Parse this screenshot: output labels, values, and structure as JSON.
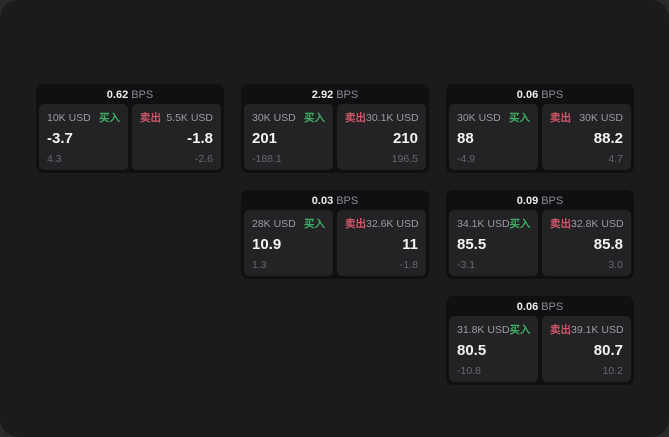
{
  "colors": {
    "buy": "#3fae63",
    "sell": "#cf5767",
    "window_bg": "#1b1b1d",
    "card_bg": "#101012",
    "panel_bg": "#232326"
  },
  "cards": [
    {
      "row": 1,
      "col": 1,
      "bps_value": "0.62",
      "bps_unit": "BPS",
      "buy": {
        "amount": "10K USD",
        "label": "买入",
        "value": "-3.7",
        "sub": "4.3"
      },
      "sell": {
        "label": "卖出",
        "amount": "5.5K USD",
        "value": "-1.8",
        "sub": "-2.6"
      }
    },
    {
      "row": 1,
      "col": 2,
      "bps_value": "2.92",
      "bps_unit": "BPS",
      "buy": {
        "amount": "30K USD",
        "label": "买入",
        "value": "201",
        "sub": "-188.1"
      },
      "sell": {
        "label": "卖出",
        "amount": "30.1K USD",
        "value": "210",
        "sub": "196.5"
      }
    },
    {
      "row": 1,
      "col": 3,
      "bps_value": "0.06",
      "bps_unit": "BPS",
      "buy": {
        "amount": "30K USD",
        "label": "买入",
        "value": "88",
        "sub": "-4.9"
      },
      "sell": {
        "label": "卖出",
        "amount": "30K USD",
        "value": "88.2",
        "sub": "4.7"
      }
    },
    {
      "row": 2,
      "col": 2,
      "bps_value": "0.03",
      "bps_unit": "BPS",
      "buy": {
        "amount": "28K USD",
        "label": "买入",
        "value": "10.9",
        "sub": "1.3"
      },
      "sell": {
        "label": "卖出",
        "amount": "32.6K USD",
        "value": "11",
        "sub": "-1.8"
      }
    },
    {
      "row": 2,
      "col": 3,
      "bps_value": "0.09",
      "bps_unit": "BPS",
      "buy": {
        "amount": "34.1K USD",
        "label": "买入",
        "value": "85.5",
        "sub": "-3.1"
      },
      "sell": {
        "label": "卖出",
        "amount": "32.8K USD",
        "value": "85.8",
        "sub": "3.0"
      }
    },
    {
      "row": 3,
      "col": 3,
      "bps_value": "0.06",
      "bps_unit": "BPS",
      "buy": {
        "amount": "31.8K USD",
        "label": "买入",
        "value": "80.5",
        "sub": "-10.8"
      },
      "sell": {
        "label": "卖出",
        "amount": "39.1K USD",
        "value": "80.7",
        "sub": "10.2"
      }
    }
  ]
}
